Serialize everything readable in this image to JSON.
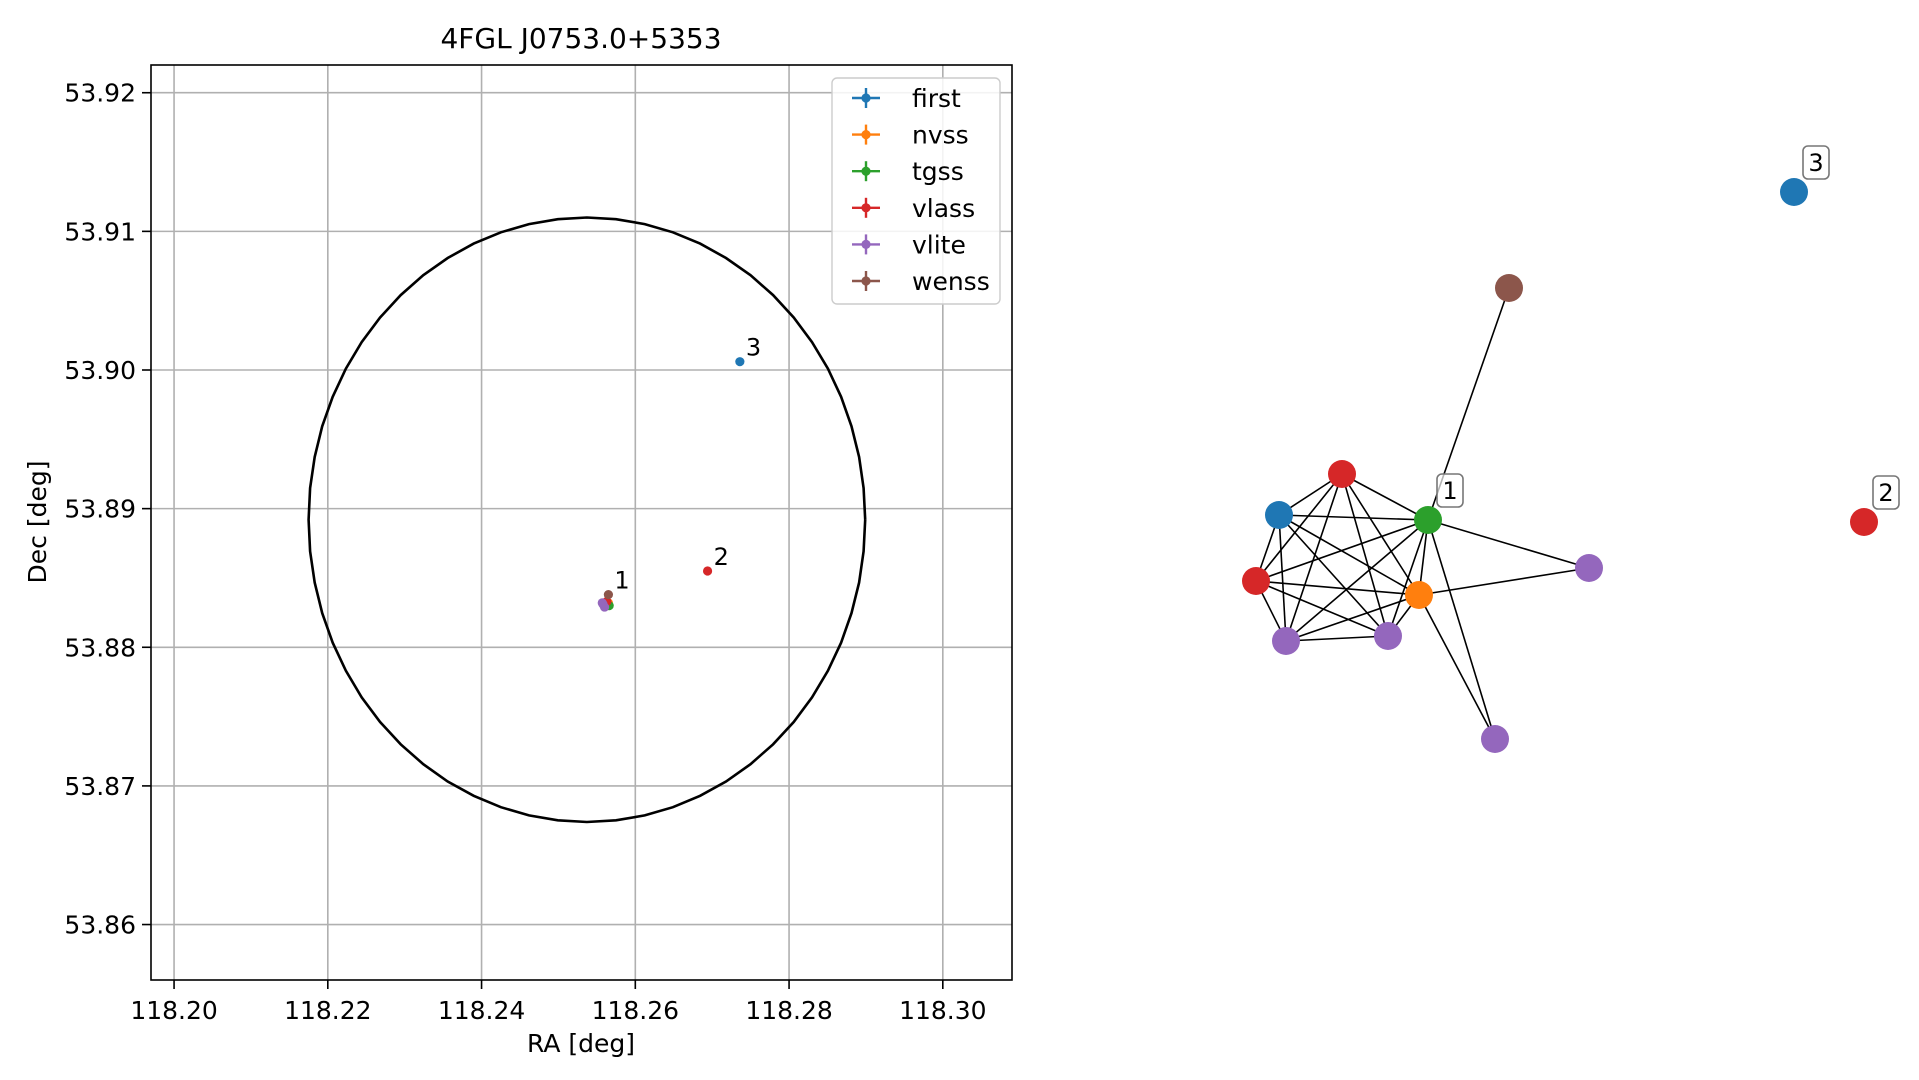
{
  "chart_data": [
    {
      "type": "scatter",
      "title": "4FGL J0753.0+5353",
      "xlabel": "RA [deg]",
      "ylabel": "Dec [deg]",
      "xlim": [
        118.197,
        118.309
      ],
      "ylim": [
        53.856,
        53.922
      ],
      "xticks": [
        118.2,
        118.22,
        118.24,
        118.26,
        118.28,
        118.3
      ],
      "xtick_labels": [
        "118.20",
        "118.22",
        "118.24",
        "118.26",
        "118.28",
        "118.30"
      ],
      "yticks": [
        53.86,
        53.87,
        53.88,
        53.89,
        53.9,
        53.91,
        53.92
      ],
      "ytick_labels": [
        "53.86",
        "53.87",
        "53.88",
        "53.89",
        "53.90",
        "53.91",
        "53.92"
      ],
      "grid": true,
      "legend": "top-right",
      "circle": {
        "ra": 118.2537,
        "dec": 53.8892,
        "radius_ra": 0.0362,
        "radius_dec": 0.0218
      },
      "series": [
        {
          "name": "first",
          "color": "#1f77b4",
          "points": [
            {
              "ra": 118.2736,
              "dec": 53.9006
            }
          ]
        },
        {
          "name": "nvss",
          "color": "#ff7f0e",
          "points": [
            {
              "ra": 118.2565,
              "dec": 53.8832
            }
          ]
        },
        {
          "name": "tgss",
          "color": "#2ca02c",
          "points": [
            {
              "ra": 118.2566,
              "dec": 53.883
            }
          ]
        },
        {
          "name": "vlass",
          "color": "#d62728",
          "points": [
            {
              "ra": 118.2694,
              "dec": 53.8855
            },
            {
              "ra": 118.2563,
              "dec": 53.8833
            }
          ]
        },
        {
          "name": "vlite",
          "color": "#9467bd",
          "points": [
            {
              "ra": 118.2558,
              "dec": 53.8831
            },
            {
              "ra": 118.256,
              "dec": 53.8829
            },
            {
              "ra": 118.2557,
              "dec": 53.8832
            }
          ]
        },
        {
          "name": "wenss",
          "color": "#8c564b",
          "points": [
            {
              "ra": 118.2565,
              "dec": 53.8838
            }
          ]
        }
      ],
      "annotations": [
        {
          "text": "1",
          "ra": 118.2565,
          "dec": 53.8838
        },
        {
          "text": "2",
          "ra": 118.2694,
          "dec": 53.8855
        },
        {
          "text": "3",
          "ra": 118.2736,
          "dec": 53.9006
        }
      ]
    },
    {
      "type": "network",
      "nodes": [
        {
          "id": "n1",
          "color": "#1f77b4"
        },
        {
          "id": "n2",
          "color": "#d62728"
        },
        {
          "id": "n3",
          "color": "#2ca02c"
        },
        {
          "id": "n4",
          "color": "#d62728"
        },
        {
          "id": "n5",
          "color": "#ff7f0e"
        },
        {
          "id": "n6",
          "color": "#9467bd"
        },
        {
          "id": "n7",
          "color": "#9467bd"
        },
        {
          "id": "n8",
          "color": "#9467bd"
        },
        {
          "id": "n9",
          "color": "#9467bd"
        },
        {
          "id": "n10",
          "color": "#8c564b"
        },
        {
          "id": "n11",
          "color": "#1f77b4"
        },
        {
          "id": "n12",
          "color": "#d62728"
        }
      ],
      "edges": [
        [
          "n1",
          "n2"
        ],
        [
          "n1",
          "n3"
        ],
        [
          "n1",
          "n4"
        ],
        [
          "n1",
          "n5"
        ],
        [
          "n1",
          "n6"
        ],
        [
          "n1",
          "n7"
        ],
        [
          "n2",
          "n3"
        ],
        [
          "n2",
          "n4"
        ],
        [
          "n2",
          "n5"
        ],
        [
          "n2",
          "n6"
        ],
        [
          "n2",
          "n7"
        ],
        [
          "n3",
          "n4"
        ],
        [
          "n3",
          "n5"
        ],
        [
          "n3",
          "n6"
        ],
        [
          "n3",
          "n7"
        ],
        [
          "n3",
          "n8"
        ],
        [
          "n3",
          "n9"
        ],
        [
          "n3",
          "n10"
        ],
        [
          "n4",
          "n5"
        ],
        [
          "n4",
          "n6"
        ],
        [
          "n4",
          "n7"
        ],
        [
          "n5",
          "n6"
        ],
        [
          "n5",
          "n7"
        ],
        [
          "n5",
          "n8"
        ],
        [
          "n5",
          "n9"
        ],
        [
          "n6",
          "n7"
        ]
      ],
      "labels": [
        {
          "text": "1",
          "node": "n3"
        },
        {
          "text": "2",
          "node": "n12"
        },
        {
          "text": "3",
          "node": "n11"
        }
      ]
    }
  ]
}
